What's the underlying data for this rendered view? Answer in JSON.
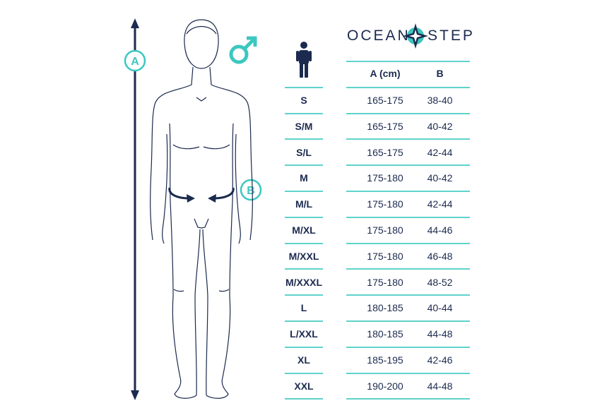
{
  "brand": {
    "left": "OCEAN",
    "right": "STEP",
    "colors": {
      "navy": "#1b2a4e",
      "teal": "#3cc7c0"
    }
  },
  "labels": {
    "height_marker": "A",
    "waist_marker": "B"
  },
  "icons": {
    "gender": "male-symbol-icon",
    "person": "person-icon"
  },
  "table": {
    "headers": [
      "A (cm)",
      "B"
    ],
    "rows": [
      {
        "size": "S",
        "a": "165-175",
        "b": "38-40"
      },
      {
        "size": "S/M",
        "a": "165-175",
        "b": "40-42"
      },
      {
        "size": "S/L",
        "a": "165-175",
        "b": "42-44"
      },
      {
        "size": "M",
        "a": "175-180",
        "b": "40-42"
      },
      {
        "size": "M/L",
        "a": "175-180",
        "b": "42-44"
      },
      {
        "size": "M/XL",
        "a": "175-180",
        "b": "44-46"
      },
      {
        "size": "M/XXL",
        "a": "175-180",
        "b": "46-48"
      },
      {
        "size": "M/XXXL",
        "a": "175-180",
        "b": "48-52"
      },
      {
        "size": "L",
        "a": "180-185",
        "b": "40-44"
      },
      {
        "size": "L/XXL",
        "a": "180-185",
        "b": "44-48"
      },
      {
        "size": "XL",
        "a": "185-195",
        "b": "42-46"
      },
      {
        "size": "XXL",
        "a": "190-200",
        "b": "44-48"
      }
    ]
  }
}
